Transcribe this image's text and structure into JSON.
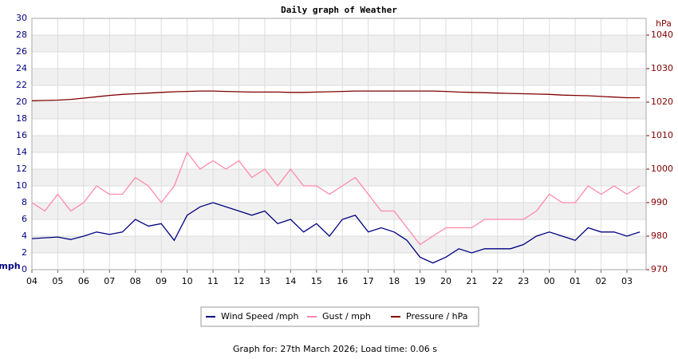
{
  "chart_data": {
    "type": "line",
    "title": "Daily graph of Weather",
    "y_label": "mph",
    "y2_label": "hPa",
    "x": [
      0,
      0.5,
      1,
      1.5,
      2,
      2.5,
      3,
      3.5,
      4,
      4.5,
      5,
      5.5,
      6,
      6.5,
      7,
      7.5,
      8,
      8.5,
      9,
      9.5,
      10,
      10.5,
      11,
      11.5,
      12,
      12.5,
      13,
      13.5,
      14,
      14.5,
      15,
      15.5,
      16,
      16.5,
      17,
      17.5,
      18,
      18.5,
      19,
      19.5,
      20,
      20.5,
      21,
      21.5,
      22,
      22.5,
      23,
      23.5
    ],
    "xlim": [
      0,
      23.74
    ],
    "xticks": [
      {
        "value": 0,
        "label": "04"
      },
      {
        "value": 1,
        "label": "05"
      },
      {
        "value": 2,
        "label": "06"
      },
      {
        "value": 3,
        "label": "07"
      },
      {
        "value": 4,
        "label": "08"
      },
      {
        "value": 5,
        "label": "09"
      },
      {
        "value": 6,
        "label": "10"
      },
      {
        "value": 7,
        "label": "11"
      },
      {
        "value": 8,
        "label": "12"
      },
      {
        "value": 9,
        "label": "13"
      },
      {
        "value": 10,
        "label": "14"
      },
      {
        "value": 11,
        "label": "15"
      },
      {
        "value": 12,
        "label": "16"
      },
      {
        "value": 13,
        "label": "17"
      },
      {
        "value": 14,
        "label": "18"
      },
      {
        "value": 15,
        "label": "19"
      },
      {
        "value": 16,
        "label": "20"
      },
      {
        "value": 17,
        "label": "21"
      },
      {
        "value": 18,
        "label": "22"
      },
      {
        "value": 19,
        "label": "23"
      },
      {
        "value": 20,
        "label": "00"
      },
      {
        "value": 21,
        "label": "01"
      },
      {
        "value": 22,
        "label": "02"
      },
      {
        "value": 23,
        "label": "03"
      }
    ],
    "ylim": [
      0,
      30
    ],
    "yticks": [
      0,
      2,
      4,
      6,
      8,
      10,
      12,
      14,
      16,
      18,
      20,
      22,
      24,
      26,
      28,
      30
    ],
    "y2lim": [
      970,
      1045
    ],
    "y2ticks": [
      970,
      980,
      990,
      1000,
      1010,
      1020,
      1030,
      1040
    ],
    "grid": true,
    "series": [
      {
        "name": "Gust / mph",
        "color": "#ff88aa",
        "values": [
          8,
          7,
          9,
          7,
          8,
          10,
          9,
          9,
          11,
          10,
          8,
          10,
          14,
          12,
          13,
          12,
          13,
          11,
          12,
          10,
          12,
          10,
          10,
          9,
          10,
          11,
          9,
          7,
          7,
          5,
          3,
          4,
          5,
          5,
          5,
          6,
          6,
          6,
          6,
          7,
          9,
          8,
          8,
          10,
          9,
          10,
          9,
          10
        ]
      },
      {
        "name": "Wind Speed /mph",
        "color": "#000080",
        "values": [
          3.7,
          3.8,
          3.9,
          3.6,
          4.0,
          4.5,
          4.2,
          4.5,
          6.0,
          5.2,
          5.5,
          3.5,
          6.5,
          7.5,
          8.0,
          7.5,
          7.0,
          6.5,
          7.0,
          5.5,
          6.0,
          4.5,
          5.5,
          4.0,
          6.0,
          6.5,
          4.5,
          5.0,
          4.5,
          3.5,
          1.5,
          0.8,
          1.5,
          2.5,
          2.0,
          2.5,
          2.5,
          2.5,
          3.0,
          4.0,
          4.5,
          4.0,
          3.5,
          5.0,
          4.5,
          4.5,
          4.0,
          4.5
        ]
      },
      {
        "name": "Pressure / hPa",
        "color": "#800000",
        "axis": "y2",
        "values": [
          1020.4,
          1020.5,
          1020.6,
          1020.8,
          1021.2,
          1021.6,
          1022.0,
          1022.3,
          1022.5,
          1022.7,
          1022.9,
          1023.1,
          1023.2,
          1023.3,
          1023.3,
          1023.2,
          1023.1,
          1023.0,
          1023.0,
          1023.0,
          1022.9,
          1022.9,
          1023.0,
          1023.1,
          1023.2,
          1023.3,
          1023.3,
          1023.3,
          1023.3,
          1023.3,
          1023.3,
          1023.3,
          1023.2,
          1023.0,
          1022.9,
          1022.8,
          1022.7,
          1022.6,
          1022.5,
          1022.4,
          1022.3,
          1022.1,
          1022.0,
          1021.9,
          1021.7,
          1021.5,
          1021.3,
          1021.3
        ]
      }
    ],
    "legend_order": [
      1,
      0,
      2
    ],
    "footer": "Graph for: 27th March 2026; Load time: 0.06 s"
  }
}
